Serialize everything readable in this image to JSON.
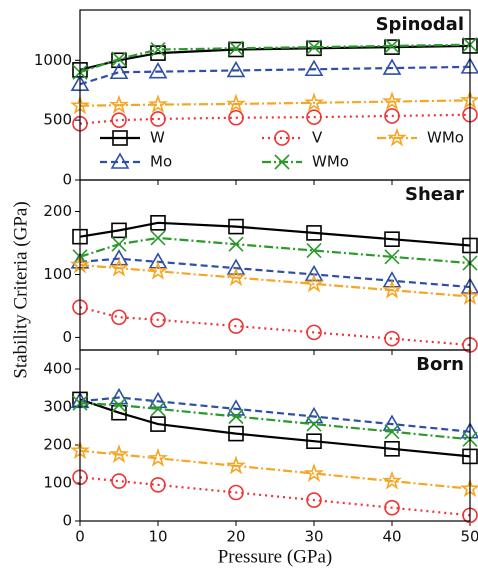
{
  "xlabel": "Pressure (GPa)",
  "ylabel": "Stability Criteria (GPa)",
  "chart_data": [
    {
      "type": "line",
      "title": "Spinodal",
      "legend": "lower center",
      "x": [
        0,
        5,
        10,
        20,
        30,
        40,
        50
      ],
      "xlim": [
        0,
        50
      ],
      "xticks": [
        0,
        10,
        20,
        30,
        40,
        50
      ],
      "ylim": [
        0,
        1420
      ],
      "yticks": [
        0,
        500,
        1000
      ],
      "series": [
        {
          "name": "W",
          "color": "#000000",
          "marker": "square",
          "linestyle": "solid",
          "values": [
            920,
            1000,
            1060,
            1090,
            1100,
            1110,
            1120
          ]
        },
        {
          "name": "Mo",
          "color": "#2e4fa8",
          "marker": "triangle",
          "linestyle": "dashed",
          "values": [
            800,
            900,
            905,
            915,
            925,
            935,
            945
          ]
        },
        {
          "name": "V",
          "color": "#ee3333",
          "marker": "circle",
          "linestyle": "dotted",
          "values": [
            470,
            500,
            510,
            520,
            525,
            535,
            545
          ]
        },
        {
          "name": "WMo",
          "color": "#2a9a2a",
          "marker": "x",
          "linestyle": "dashdot",
          "values": [
            900,
            1010,
            1090,
            1100,
            1110,
            1120,
            1130
          ]
        },
        {
          "name": "WMo",
          "color": "#f5a623",
          "marker": "star",
          "linestyle": "dashdot",
          "values": [
            620,
            625,
            630,
            635,
            645,
            655,
            665
          ]
        }
      ]
    },
    {
      "type": "line",
      "title": "Shear",
      "x": [
        0,
        5,
        10,
        20,
        30,
        40,
        50
      ],
      "xlim": [
        0,
        50
      ],
      "xticks": [
        0,
        10,
        20,
        30,
        40,
        50
      ],
      "ylim": [
        -20,
        250
      ],
      "yticks": [
        0,
        100,
        200
      ],
      "series": [
        {
          "color": "#000000",
          "marker": "square",
          "linestyle": "solid",
          "values": [
            160,
            170,
            182,
            176,
            166,
            156,
            146
          ]
        },
        {
          "color": "#2e4fa8",
          "marker": "triangle",
          "linestyle": "dashed",
          "values": [
            120,
            125,
            120,
            110,
            100,
            90,
            80
          ]
        },
        {
          "color": "#ee3333",
          "marker": "circle",
          "linestyle": "dotted",
          "values": [
            48,
            32,
            28,
            18,
            8,
            -2,
            -12
          ]
        },
        {
          "color": "#2a9a2a",
          "marker": "x",
          "linestyle": "dashdot",
          "values": [
            128,
            148,
            158,
            148,
            138,
            128,
            118
          ]
        },
        {
          "color": "#f5a623",
          "marker": "star",
          "linestyle": "dashdot",
          "values": [
            115,
            110,
            105,
            95,
            85,
            75,
            65
          ]
        }
      ]
    },
    {
      "type": "line",
      "title": "Born",
      "x": [
        0,
        5,
        10,
        20,
        30,
        40,
        50
      ],
      "xlim": [
        0,
        50
      ],
      "xticks": [
        0,
        10,
        20,
        30,
        40,
        50
      ],
      "ylim": [
        0,
        450
      ],
      "yticks": [
        0,
        100,
        200,
        300,
        400
      ],
      "series": [
        {
          "color": "#000000",
          "marker": "square",
          "linestyle": "solid",
          "values": [
            320,
            285,
            255,
            230,
            210,
            190,
            170
          ]
        },
        {
          "color": "#2e4fa8",
          "marker": "triangle",
          "linestyle": "dashed",
          "values": [
            315,
            325,
            315,
            295,
            275,
            255,
            235
          ]
        },
        {
          "color": "#ee3333",
          "marker": "circle",
          "linestyle": "dotted",
          "values": [
            115,
            105,
            95,
            75,
            55,
            35,
            15
          ]
        },
        {
          "color": "#2a9a2a",
          "marker": "x",
          "linestyle": "dashdot",
          "values": [
            310,
            305,
            295,
            275,
            255,
            235,
            215
          ]
        },
        {
          "color": "#f5a623",
          "marker": "star",
          "linestyle": "dashdot",
          "values": [
            185,
            175,
            165,
            145,
            125,
            105,
            85
          ]
        }
      ]
    }
  ]
}
